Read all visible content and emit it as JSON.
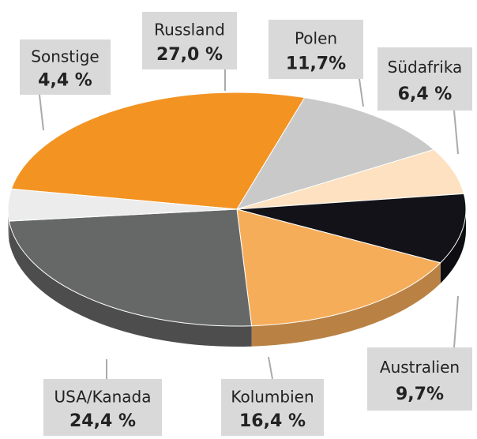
{
  "chart_data": {
    "type": "pie",
    "categories": [
      "Russland",
      "Polen",
      "Südafrika",
      "Australien",
      "Kolumbien",
      "USA/Kanada",
      "Sonstige"
    ],
    "values": [
      27.0,
      11.7,
      6.4,
      9.7,
      16.4,
      24.4,
      4.4
    ],
    "value_labels": [
      "27,0 %",
      "11,7%",
      "6,4 %",
      "9,7%",
      "16,4 %",
      "24,4 %",
      "4,4 %"
    ],
    "colors": [
      "#f39322",
      "#c9c9c9",
      "#fde1c0",
      "#121218",
      "#f6ad5a",
      "#666767",
      "#ececec"
    ]
  }
}
